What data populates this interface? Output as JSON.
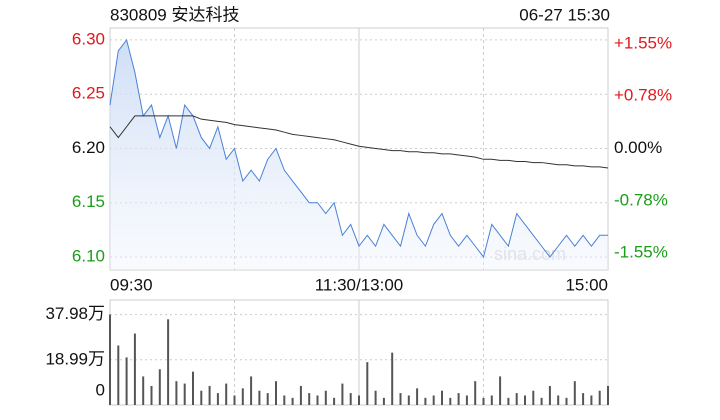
{
  "chart_data": [
    {
      "type": "line",
      "title": "830809 安达科技",
      "subtitle": "06-27 15:30",
      "watermark": "sina.com",
      "x": [
        0,
        4,
        8,
        12,
        16,
        20,
        24,
        28,
        32,
        36,
        40,
        44,
        48,
        52,
        56,
        60,
        64,
        68,
        72,
        76,
        80,
        84,
        88,
        92,
        96,
        100,
        104,
        108,
        112,
        116,
        120,
        124,
        128,
        132,
        136,
        140,
        144,
        148,
        152,
        156,
        160,
        164,
        168,
        172,
        176,
        180,
        184,
        188,
        192,
        196,
        200,
        204,
        208,
        212,
        216,
        220,
        224,
        228,
        232,
        236,
        240
      ],
      "xlim": [
        0,
        240
      ],
      "xticks": [
        {
          "value": 0,
          "label": "09:30"
        },
        {
          "value": 120,
          "label": "11:30/13:00"
        },
        {
          "value": 240,
          "label": "15:00"
        }
      ],
      "series": [
        {
          "color": "#4a80d8",
          "values": [
            6.24,
            6.29,
            6.3,
            6.27,
            6.23,
            6.24,
            6.21,
            6.23,
            6.2,
            6.24,
            6.23,
            6.21,
            6.2,
            6.22,
            6.19,
            6.2,
            6.17,
            6.18,
            6.17,
            6.19,
            6.2,
            6.18,
            6.17,
            6.16,
            6.15,
            6.15,
            6.14,
            6.15,
            6.12,
            6.13,
            6.11,
            6.12,
            6.11,
            6.13,
            6.12,
            6.11,
            6.14,
            6.12,
            6.11,
            6.13,
            6.14,
            6.12,
            6.11,
            6.12,
            6.11,
            6.1,
            6.13,
            6.12,
            6.11,
            6.14,
            6.13,
            6.12,
            6.11,
            6.1,
            6.11,
            6.12,
            6.11,
            6.12,
            6.11,
            6.12,
            6.12
          ]
        },
        {
          "color": "#333333",
          "values": [
            6.22,
            6.21,
            6.22,
            6.23,
            6.23,
            6.23,
            6.23,
            6.23,
            6.23,
            6.23,
            6.23,
            6.227,
            6.226,
            6.225,
            6.224,
            6.222,
            6.221,
            6.22,
            6.219,
            6.218,
            6.217,
            6.215,
            6.213,
            6.212,
            6.211,
            6.21,
            6.209,
            6.208,
            6.206,
            6.204,
            6.202,
            6.201,
            6.2,
            6.199,
            6.198,
            6.198,
            6.197,
            6.197,
            6.196,
            6.196,
            6.195,
            6.195,
            6.194,
            6.193,
            6.192,
            6.19,
            6.19,
            6.189,
            6.189,
            6.188,
            6.188,
            6.187,
            6.187,
            6.186,
            6.185,
            6.185,
            6.184,
            6.184,
            6.183,
            6.183,
            6.182
          ]
        }
      ],
      "ylim": [
        6.088,
        6.311
      ],
      "yticks": [
        {
          "value": 6.3,
          "label": "6.30"
        },
        {
          "value": 6.25,
          "label": "6.25"
        },
        {
          "value": 6.2,
          "label": "6.20"
        },
        {
          "value": 6.15,
          "label": "6.15"
        },
        {
          "value": 6.1,
          "label": "6.10"
        }
      ],
      "y2lim": [
        -1.806,
        1.79
      ],
      "y2ticks": [
        {
          "value": 1.55,
          "label": "+1.55%"
        },
        {
          "value": 0.78,
          "label": "+0.78%"
        },
        {
          "value": 0,
          "label": "0.00%"
        },
        {
          "value": -0.78,
          "label": "-0.78%"
        },
        {
          "value": -1.55,
          "label": "-1.55%"
        }
      ],
      "up_color": "#e0191d",
      "down_color": "#1a9e1a",
      "grid": true
    },
    {
      "type": "bar",
      "x": [
        0,
        4,
        8,
        12,
        16,
        20,
        24,
        28,
        32,
        36,
        40,
        44,
        48,
        52,
        56,
        60,
        64,
        68,
        72,
        76,
        80,
        84,
        88,
        92,
        96,
        100,
        104,
        108,
        112,
        116,
        120,
        124,
        128,
        132,
        136,
        140,
        144,
        148,
        152,
        156,
        160,
        164,
        168,
        172,
        176,
        180,
        184,
        188,
        192,
        196,
        200,
        204,
        208,
        212,
        216,
        220,
        224,
        228,
        232,
        236,
        240
      ],
      "xlim": [
        0,
        240
      ],
      "values": [
        38,
        25,
        20,
        30,
        12,
        8,
        15,
        36,
        10,
        9,
        14,
        6,
        8,
        5,
        9,
        4,
        7,
        12,
        6,
        5,
        10,
        4,
        3,
        8,
        5,
        4,
        6,
        3,
        9,
        5,
        4,
        18,
        6,
        3,
        22,
        5,
        4,
        7,
        3,
        4,
        6,
        3,
        5,
        4,
        10,
        3,
        4,
        12,
        3,
        5,
        4,
        6,
        3,
        8,
        4,
        3,
        10,
        5,
        4,
        6,
        8
      ],
      "color": "#555555",
      "ylim": [
        0,
        42
      ],
      "yticks": [
        {
          "value": 37.98,
          "label": "37.98万"
        },
        {
          "value": 18.99,
          "label": "18.99万"
        },
        {
          "value": 0,
          "label": "0"
        }
      ],
      "grid": true
    }
  ]
}
